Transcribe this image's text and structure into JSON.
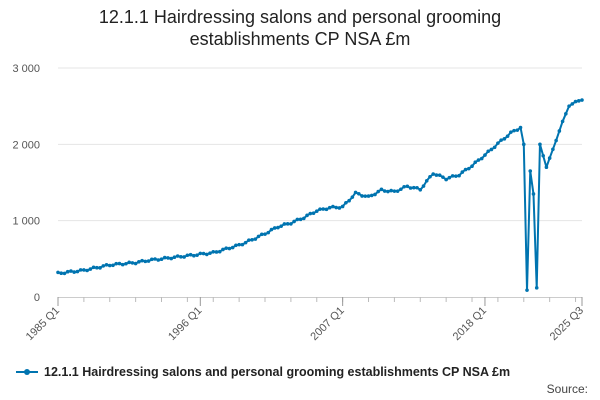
{
  "chart_data": {
    "type": "line",
    "title": "12.1.1 Hairdressing salons and personal grooming establishments CP NSA £m",
    "title_lines": [
      "12.1.1 Hairdressing salons and personal grooming",
      "establishments CP NSA £m"
    ],
    "xlabel": "",
    "ylabel": "",
    "x_tick_labels": [
      "1985 Q1",
      "1996 Q1",
      "2007 Q1",
      "2018 Q1",
      "2025 Q3"
    ],
    "y_tick_labels": [
      "0",
      "1 000",
      "2 000",
      "3 000"
    ],
    "ylim": [
      0,
      3000
    ],
    "grid": "horizontal",
    "legend_position": "bottom-left",
    "color": "#0074b0",
    "series": [
      {
        "name": "12.1.1 Hairdressing salons and personal grooming establishments CP NSA £m",
        "anchors": [
          [
            "1985 Q1",
            310
          ],
          [
            "1987 Q1",
            350
          ],
          [
            "1989 Q1",
            420
          ],
          [
            "1991 Q1",
            450
          ],
          [
            "1992 Q1",
            480
          ],
          [
            "1994 Q1",
            520
          ],
          [
            "1995 Q1",
            540
          ],
          [
            "1996 Q1",
            560
          ],
          [
            "1997 Q1",
            580
          ],
          [
            "1999 Q1",
            680
          ],
          [
            "2000 Q1",
            750
          ],
          [
            "2001 Q1",
            830
          ],
          [
            "2002 Q1",
            920
          ],
          [
            "2003 Q1",
            970
          ],
          [
            "2004 Q1",
            1040
          ],
          [
            "2005 Q1",
            1130
          ],
          [
            "2006 Q1",
            1170
          ],
          [
            "2007 Q1",
            1180
          ],
          [
            "2008 Q1",
            1360
          ],
          [
            "2009 Q1",
            1310
          ],
          [
            "2010 Q1",
            1400
          ],
          [
            "2011 Q1",
            1380
          ],
          [
            "2012 Q1",
            1450
          ],
          [
            "2013 Q1",
            1410
          ],
          [
            "2014 Q1",
            1620
          ],
          [
            "2015 Q1",
            1550
          ],
          [
            "2016 Q1",
            1600
          ],
          [
            "2017 Q1",
            1720
          ],
          [
            "2018 Q1",
            1860
          ],
          [
            "2019 Q1",
            2010
          ],
          [
            "2020 Q1",
            2150
          ],
          [
            "2020 Q4",
            2220
          ],
          [
            "2021 Q1",
            2000
          ],
          [
            "2021 Q2",
            90
          ],
          [
            "2021 Q3",
            1650
          ],
          [
            "2021 Q4",
            1350
          ],
          [
            "2022 Q1",
            120
          ],
          [
            "2022 Q2",
            2000
          ],
          [
            "2022 Q3",
            1850
          ],
          [
            "2022 Q4",
            1700
          ],
          [
            "2023 Q1",
            1820
          ],
          [
            "2023 Q3",
            2050
          ],
          [
            "2024 Q1",
            2300
          ],
          [
            "2024 Q3",
            2500
          ],
          [
            "2025 Q1",
            2560
          ],
          [
            "2025 Q3",
            2580
          ]
        ]
      }
    ]
  },
  "source_label": "Source:"
}
